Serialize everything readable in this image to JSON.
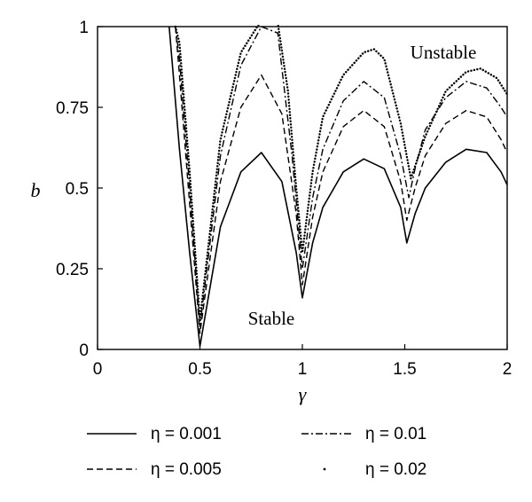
{
  "chart_data": {
    "type": "line",
    "xlabel": "γ",
    "ylabel": "b",
    "xlim": [
      0,
      2
    ],
    "ylim": [
      0,
      1
    ],
    "x_ticks": [
      "0",
      "0.5",
      "1",
      "1.5",
      "2"
    ],
    "y_ticks": [
      "0",
      "0.25",
      "0.5",
      "0.75",
      "1"
    ],
    "x_tick_values": [
      0,
      0.5,
      1,
      1.5,
      2
    ],
    "y_tick_values": [
      0,
      0.25,
      0.5,
      0.75,
      1
    ],
    "grid": false,
    "legend_position": "bottom",
    "annotations": [
      {
        "text": "Unstable",
        "x": 1.63,
        "y": 0.92
      },
      {
        "text": "Stable",
        "x": 1.12,
        "y": 0.09
      }
    ],
    "series": [
      {
        "name": "η = 0.001",
        "style": "solid",
        "x": [
          0.35,
          0.4,
          0.45,
          0.5,
          0.6,
          0.7,
          0.8,
          0.9,
          0.97,
          1.0,
          1.05,
          1.1,
          1.2,
          1.3,
          1.4,
          1.48,
          1.51,
          1.55,
          1.6,
          1.7,
          1.8,
          1.9,
          1.97,
          2.0
        ],
        "y": [
          1.0,
          0.62,
          0.3,
          0.01,
          0.38,
          0.55,
          0.61,
          0.52,
          0.3,
          0.16,
          0.33,
          0.44,
          0.55,
          0.59,
          0.56,
          0.44,
          0.33,
          0.42,
          0.5,
          0.58,
          0.62,
          0.61,
          0.55,
          0.51
        ]
      },
      {
        "name": "η = 0.005",
        "style": "dashed",
        "x": [
          0.38,
          0.4,
          0.45,
          0.5,
          0.6,
          0.7,
          0.8,
          0.9,
          0.97,
          1.0,
          1.05,
          1.1,
          1.2,
          1.3,
          1.4,
          1.48,
          1.51,
          1.55,
          1.6,
          1.7,
          1.8,
          1.9,
          1.97,
          2.0
        ],
        "y": [
          1.0,
          0.85,
          0.45,
          0.05,
          0.52,
          0.75,
          0.85,
          0.73,
          0.42,
          0.2,
          0.41,
          0.55,
          0.69,
          0.74,
          0.69,
          0.52,
          0.4,
          0.5,
          0.6,
          0.7,
          0.74,
          0.72,
          0.65,
          0.61
        ]
      },
      {
        "name": "η = 0.01",
        "style": "dashdot",
        "x": [
          0.38,
          0.4,
          0.45,
          0.5,
          0.6,
          0.7,
          0.8,
          0.88,
          0.95,
          1.0,
          1.05,
          1.1,
          1.2,
          1.3,
          1.4,
          1.48,
          1.52,
          1.55,
          1.6,
          1.7,
          1.8,
          1.9,
          1.97,
          2.0
        ],
        "y": [
          1.0,
          0.9,
          0.5,
          0.07,
          0.6,
          0.88,
          1.0,
          0.98,
          0.6,
          0.25,
          0.47,
          0.62,
          0.77,
          0.83,
          0.78,
          0.6,
          0.47,
          0.56,
          0.68,
          0.78,
          0.83,
          0.81,
          0.75,
          0.72
        ]
      },
      {
        "name": "η = 0.02",
        "style": "dotted",
        "x": [
          0.38,
          0.4,
          0.45,
          0.5,
          0.6,
          0.7,
          0.8,
          0.88,
          0.93,
          0.97,
          1.0,
          1.05,
          1.1,
          1.2,
          1.3,
          1.35,
          1.4,
          1.48,
          1.53,
          1.6,
          1.7,
          1.8,
          1.87,
          1.95,
          2.0
        ],
        "y": [
          1.0,
          0.95,
          0.55,
          0.09,
          0.65,
          0.92,
          1.02,
          1.01,
          0.8,
          0.5,
          0.3,
          0.55,
          0.72,
          0.85,
          0.92,
          0.93,
          0.9,
          0.7,
          0.53,
          0.66,
          0.8,
          0.86,
          0.87,
          0.84,
          0.79
        ]
      }
    ]
  }
}
